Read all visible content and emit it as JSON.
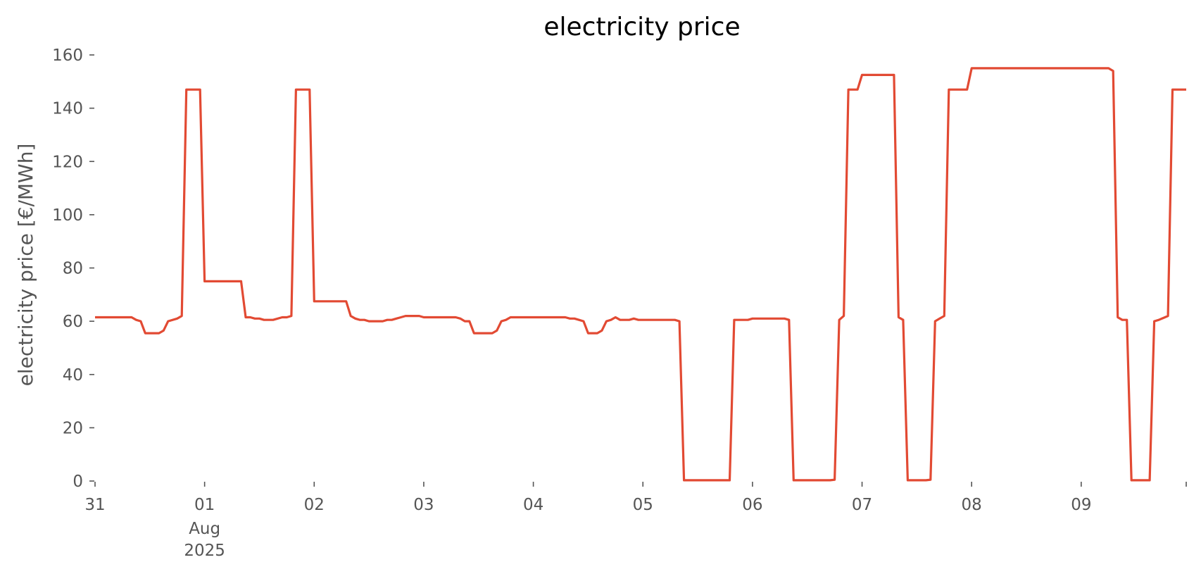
{
  "chart_data": {
    "type": "line",
    "title": "electricity price",
    "xlabel": "",
    "ylabel": "electricity price [€/MWh]",
    "ylim": [
      0,
      160
    ],
    "xlim": [
      "2025-07-31 00:00",
      "2025-08-09 23:00"
    ],
    "grid": false,
    "yticks": [
      0,
      20,
      40,
      60,
      80,
      100,
      120,
      140,
      160
    ],
    "xticks": [
      {
        "at": "2025-07-31",
        "label": "31",
        "sub": []
      },
      {
        "at": "2025-08-01",
        "label": "01",
        "sub": [
          "Aug",
          "2025"
        ]
      },
      {
        "at": "2025-08-02",
        "label": "02",
        "sub": []
      },
      {
        "at": "2025-08-03",
        "label": "03",
        "sub": []
      },
      {
        "at": "2025-08-04",
        "label": "04",
        "sub": []
      },
      {
        "at": "2025-08-05",
        "label": "05",
        "sub": []
      },
      {
        "at": "2025-08-06",
        "label": "06",
        "sub": []
      },
      {
        "at": "2025-08-07",
        "label": "07",
        "sub": []
      },
      {
        "at": "2025-08-08",
        "label": "08",
        "sub": []
      },
      {
        "at": "2025-08-09",
        "label": "09",
        "sub": []
      },
      {
        "at": "2025-08-09 23:00",
        "label": "",
        "sub": []
      }
    ],
    "series": [
      {
        "color": "#e24a33",
        "points": [
          [
            "2025-07-31 00:00",
            61.5
          ],
          [
            "2025-07-31 08:00",
            61.5
          ],
          [
            "2025-07-31 09:00",
            60.5
          ],
          [
            "2025-07-31 10:00",
            60
          ],
          [
            "2025-07-31 11:00",
            55.5
          ],
          [
            "2025-07-31 14:00",
            55.5
          ],
          [
            "2025-07-31 15:00",
            56.5
          ],
          [
            "2025-07-31 16:00",
            60
          ],
          [
            "2025-07-31 18:00",
            61
          ],
          [
            "2025-07-31 19:00",
            62
          ],
          [
            "2025-07-31 20:00",
            147
          ],
          [
            "2025-07-31 23:00",
            147
          ],
          [
            "2025-08-01 00:00",
            75
          ],
          [
            "2025-08-01 08:00",
            75
          ],
          [
            "2025-08-01 09:00",
            61.5
          ],
          [
            "2025-08-01 10:00",
            61.5
          ],
          [
            "2025-08-01 11:00",
            61
          ],
          [
            "2025-08-01 12:00",
            61
          ],
          [
            "2025-08-01 13:00",
            60.5
          ],
          [
            "2025-08-01 15:00",
            60.5
          ],
          [
            "2025-08-01 17:00",
            61.5
          ],
          [
            "2025-08-01 18:00",
            61.5
          ],
          [
            "2025-08-01 19:00",
            62
          ],
          [
            "2025-08-01 20:00",
            147
          ],
          [
            "2025-08-01 23:00",
            147
          ],
          [
            "2025-08-02 00:00",
            67.5
          ],
          [
            "2025-08-02 07:00",
            67.5
          ],
          [
            "2025-08-02 08:00",
            62
          ],
          [
            "2025-08-02 09:00",
            61
          ],
          [
            "2025-08-02 10:00",
            60.5
          ],
          [
            "2025-08-02 11:00",
            60.5
          ],
          [
            "2025-08-02 12:00",
            60
          ],
          [
            "2025-08-02 15:00",
            60
          ],
          [
            "2025-08-02 16:00",
            60.5
          ],
          [
            "2025-08-02 17:00",
            60.5
          ],
          [
            "2025-08-02 18:00",
            61
          ],
          [
            "2025-08-02 19:00",
            61.5
          ],
          [
            "2025-08-02 20:00",
            62
          ],
          [
            "2025-08-02 23:00",
            62
          ],
          [
            "2025-08-03 00:00",
            61.5
          ],
          [
            "2025-08-03 07:00",
            61.5
          ],
          [
            "2025-08-03 08:00",
            61
          ],
          [
            "2025-08-03 09:00",
            60
          ],
          [
            "2025-08-03 10:00",
            60
          ],
          [
            "2025-08-03 11:00",
            55.5
          ],
          [
            "2025-08-03 15:00",
            55.5
          ],
          [
            "2025-08-03 16:00",
            56.5
          ],
          [
            "2025-08-03 17:00",
            60
          ],
          [
            "2025-08-03 18:00",
            60.5
          ],
          [
            "2025-08-03 19:00",
            61.5
          ],
          [
            "2025-08-04 07:00",
            61.5
          ],
          [
            "2025-08-04 08:00",
            61
          ],
          [
            "2025-08-04 09:00",
            61
          ],
          [
            "2025-08-04 10:00",
            60.5
          ],
          [
            "2025-08-04 11:00",
            60
          ],
          [
            "2025-08-04 12:00",
            55.5
          ],
          [
            "2025-08-04 14:00",
            55.5
          ],
          [
            "2025-08-04 15:00",
            56.5
          ],
          [
            "2025-08-04 16:00",
            60
          ],
          [
            "2025-08-04 17:00",
            60.5
          ],
          [
            "2025-08-04 18:00",
            61.5
          ],
          [
            "2025-08-04 19:00",
            60.5
          ],
          [
            "2025-08-04 21:00",
            60.5
          ],
          [
            "2025-08-04 22:00",
            61
          ],
          [
            "2025-08-04 23:00",
            60.5
          ],
          [
            "2025-08-05 07:00",
            60.5
          ],
          [
            "2025-08-05 08:00",
            60
          ],
          [
            "2025-08-05 09:00",
            0.3
          ],
          [
            "2025-08-05 19:00",
            0.3
          ],
          [
            "2025-08-05 20:00",
            60.5
          ],
          [
            "2025-08-05 23:00",
            60.5
          ],
          [
            "2025-08-06 00:00",
            61
          ],
          [
            "2025-08-06 07:00",
            61
          ],
          [
            "2025-08-06 08:00",
            60.5
          ],
          [
            "2025-08-06 09:00",
            0.3
          ],
          [
            "2025-08-06 17:00",
            0.3
          ],
          [
            "2025-08-06 18:00",
            0.5
          ],
          [
            "2025-08-06 19:00",
            60.5
          ],
          [
            "2025-08-06 20:00",
            62
          ],
          [
            "2025-08-06 21:00",
            147
          ],
          [
            "2025-08-06 23:00",
            147
          ],
          [
            "2025-08-07 00:00",
            152.5
          ],
          [
            "2025-08-07 07:00",
            152.5
          ],
          [
            "2025-08-07 08:00",
            61.5
          ],
          [
            "2025-08-07 09:00",
            60.5
          ],
          [
            "2025-08-07 10:00",
            0.3
          ],
          [
            "2025-08-07 14:00",
            0.3
          ],
          [
            "2025-08-07 15:00",
            0.5
          ],
          [
            "2025-08-07 16:00",
            60
          ],
          [
            "2025-08-07 17:00",
            61
          ],
          [
            "2025-08-07 18:00",
            62
          ],
          [
            "2025-08-07 19:00",
            147
          ],
          [
            "2025-08-07 23:00",
            147
          ],
          [
            "2025-08-08 00:00",
            155
          ],
          [
            "2025-08-09 06:00",
            155
          ],
          [
            "2025-08-09 07:00",
            154
          ],
          [
            "2025-08-09 08:00",
            61.5
          ],
          [
            "2025-08-09 09:00",
            60.5
          ],
          [
            "2025-08-09 10:00",
            60.5
          ],
          [
            "2025-08-09 11:00",
            0.3
          ],
          [
            "2025-08-09 15:00",
            0.3
          ],
          [
            "2025-08-09 16:00",
            60
          ],
          [
            "2025-08-09 17:00",
            60.5
          ],
          [
            "2025-08-09 19:00",
            62
          ],
          [
            "2025-08-09 20:00",
            147
          ],
          [
            "2025-08-09 23:00",
            147
          ]
        ]
      }
    ]
  }
}
